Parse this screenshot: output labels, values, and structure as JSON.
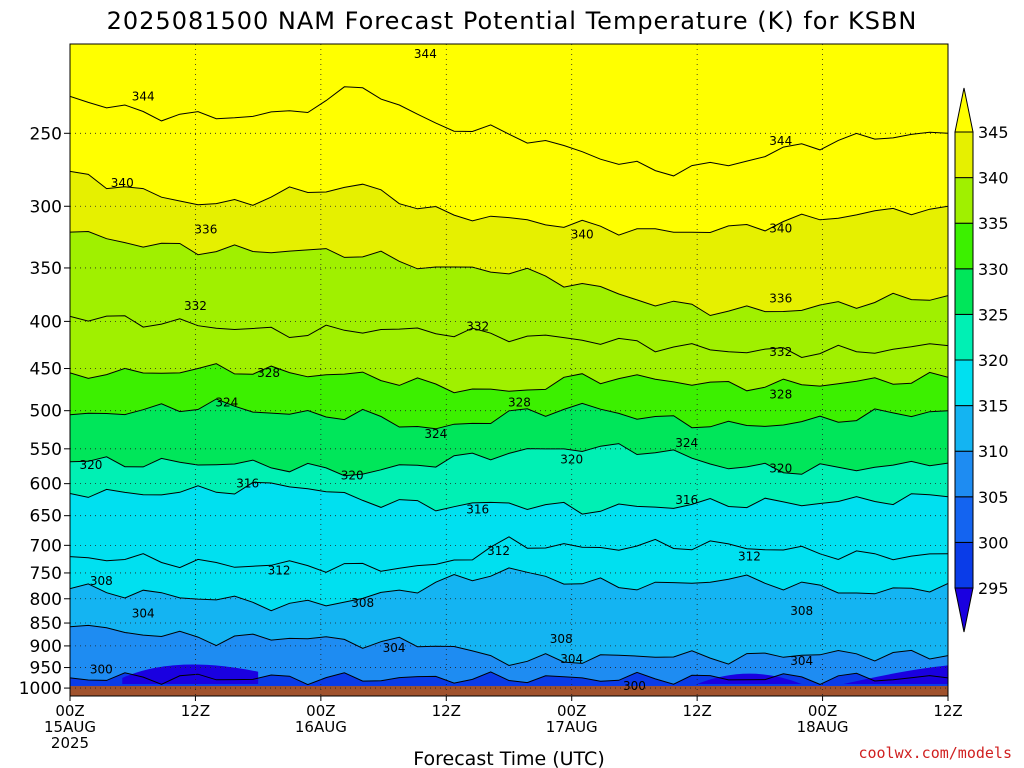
{
  "chart_data": {
    "type": "contour",
    "title": "2025081500 NAM Forecast Potential Temperature (K) for KSBN",
    "xlabel": "Forecast Time (UTC)",
    "ylabel": "",
    "credit": "coolwx.com/models",
    "x_ticks": [
      {
        "t": 0,
        "line1": "00Z",
        "line2": "15AUG",
        "line3": "2025"
      },
      {
        "t": 12,
        "line1": "12Z",
        "line2": "",
        "line3": ""
      },
      {
        "t": 24,
        "line1": "00Z",
        "line2": "16AUG",
        "line3": ""
      },
      {
        "t": 36,
        "line1": "12Z",
        "line2": "",
        "line3": ""
      },
      {
        "t": 48,
        "line1": "00Z",
        "line2": "17AUG",
        "line3": ""
      },
      {
        "t": 60,
        "line1": "12Z",
        "line2": "",
        "line3": ""
      },
      {
        "t": 72,
        "line1": "00Z",
        "line2": "18AUG",
        "line3": ""
      },
      {
        "t": 84,
        "line1": "12Z",
        "line2": "",
        "line3": ""
      }
    ],
    "xlim": [
      0,
      84
    ],
    "y_ticks": [
      1000,
      950,
      900,
      850,
      800,
      750,
      700,
      650,
      600,
      550,
      500,
      450,
      400,
      350,
      300,
      250
    ],
    "ylim": [
      1020,
      200
    ],
    "y_scale": "log",
    "colorbar": {
      "levels": [
        295,
        300,
        305,
        310,
        315,
        320,
        325,
        330,
        335,
        340,
        345
      ],
      "colors": [
        "#1a00e0",
        "#0a3ce8",
        "#1464f0",
        "#1e8cf2",
        "#14b4f2",
        "#00e0f0",
        "#00f0b4",
        "#00e65a",
        "#3cf000",
        "#a0f000",
        "#e6f000",
        "#ffff00"
      ]
    },
    "isentropes": [
      {
        "theta": 300,
        "p": [
          975,
          975,
          975,
          976,
          976,
          976,
          976,
          976,
          976,
          976,
          975,
          975,
          975
        ]
      },
      {
        "theta": 304,
        "p": [
          858,
          872,
          885,
          880,
          892,
          895,
          935,
          930,
          920,
          928,
          918,
          920,
          922
        ]
      },
      {
        "theta": 308,
        "p": [
          780,
          790,
          800,
          815,
          800,
          770,
          745,
          770,
          775,
          760,
          775,
          790,
          770
        ]
      },
      {
        "theta": 312,
        "p": [
          720,
          725,
          735,
          735,
          740,
          738,
          695,
          705,
          700,
          700,
          710,
          720,
          715
        ]
      },
      {
        "theta": 316,
        "p": [
          615,
          615,
          610,
          600,
          625,
          635,
          630,
          640,
          635,
          630,
          630,
          625,
          620
        ]
      },
      {
        "theta": 320,
        "p": [
          568,
          570,
          570,
          575,
          585,
          568,
          555,
          548,
          552,
          575,
          580,
          575,
          570
        ]
      },
      {
        "theta": 324,
        "p": [
          505,
          500,
          492,
          505,
          505,
          525,
          505,
          495,
          510,
          520,
          515,
          505,
          500
        ]
      },
      {
        "theta": 328,
        "p": [
          455,
          455,
          450,
          455,
          458,
          470,
          478,
          460,
          462,
          470,
          468,
          465,
          460
        ]
      },
      {
        "theta": 332,
        "p": [
          395,
          400,
          405,
          412,
          408,
          410,
          415,
          418,
          425,
          430,
          432,
          430,
          425
        ]
      },
      {
        "theta": 336,
        "p": [
          320,
          330,
          335,
          335,
          338,
          350,
          352,
          365,
          382,
          390,
          388,
          380,
          375
        ]
      },
      {
        "theta": 340,
        "p": [
          275,
          290,
          300,
          290,
          285,
          305,
          310,
          315,
          320,
          318,
          310,
          305,
          300
        ]
      },
      {
        "theta": 344,
        "p": [
          228,
          238,
          240,
          238,
          222,
          245,
          250,
          262,
          275,
          270,
          258,
          252,
          250
        ]
      }
    ],
    "isentrope_label_positions": [
      {
        "theta": 344,
        "t": 7,
        "p": 228
      },
      {
        "theta": 344,
        "t": 34,
        "p": 205
      },
      {
        "theta": 344,
        "t": 68,
        "p": 255
      },
      {
        "theta": 340,
        "t": 5,
        "p": 283
      },
      {
        "theta": 340,
        "t": 49,
        "p": 322
      },
      {
        "theta": 340,
        "t": 68,
        "p": 317
      },
      {
        "theta": 336,
        "t": 13,
        "p": 318
      },
      {
        "theta": 336,
        "t": 68,
        "p": 378
      },
      {
        "theta": 332,
        "t": 12,
        "p": 385
      },
      {
        "theta": 332,
        "t": 39,
        "p": 405
      },
      {
        "theta": 332,
        "t": 68,
        "p": 432
      },
      {
        "theta": 328,
        "t": 19,
        "p": 455
      },
      {
        "theta": 328,
        "t": 43,
        "p": 490
      },
      {
        "theta": 328,
        "t": 68,
        "p": 480
      },
      {
        "theta": 324,
        "t": 15,
        "p": 490
      },
      {
        "theta": 324,
        "t": 35,
        "p": 530
      },
      {
        "theta": 324,
        "t": 59,
        "p": 542
      },
      {
        "theta": 320,
        "t": 2,
        "p": 573
      },
      {
        "theta": 320,
        "t": 27,
        "p": 588
      },
      {
        "theta": 320,
        "t": 48,
        "p": 565
      },
      {
        "theta": 320,
        "t": 68,
        "p": 578
      },
      {
        "theta": 316,
        "t": 17,
        "p": 600
      },
      {
        "theta": 316,
        "t": 39,
        "p": 640
      },
      {
        "theta": 316,
        "t": 59,
        "p": 625
      },
      {
        "theta": 312,
        "t": 20,
        "p": 745
      },
      {
        "theta": 312,
        "t": 41,
        "p": 710
      },
      {
        "theta": 312,
        "t": 65,
        "p": 720
      },
      {
        "theta": 308,
        "t": 3,
        "p": 765
      },
      {
        "theta": 308,
        "t": 28,
        "p": 808
      },
      {
        "theta": 308,
        "t": 47,
        "p": 885
      },
      {
        "theta": 308,
        "t": 70,
        "p": 825
      },
      {
        "theta": 304,
        "t": 7,
        "p": 830
      },
      {
        "theta": 304,
        "t": 31,
        "p": 905
      },
      {
        "theta": 304,
        "t": 48,
        "p": 930
      },
      {
        "theta": 304,
        "t": 70,
        "p": 935
      },
      {
        "theta": 300,
        "t": 3,
        "p": 955
      },
      {
        "theta": 300,
        "t": 54,
        "p": 995
      }
    ]
  }
}
